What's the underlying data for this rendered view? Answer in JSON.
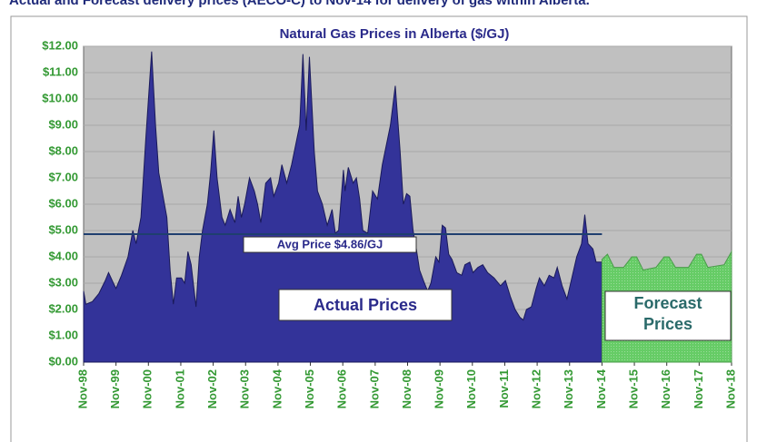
{
  "header": "Actual and Forecast delivery prices (AECO-C) to Nov-14 for delivery of gas within Alberta.",
  "chart_data": {
    "type": "area",
    "title": "Natural Gas Prices in Alberta ($/GJ)",
    "series": [
      {
        "name": "Actual Prices",
        "color": "#333399",
        "x": [
          1998.83,
          1998.9,
          1999.1,
          1999.3,
          1999.5,
          1999.6,
          1999.75,
          1999.83,
          2000.0,
          2000.2,
          2000.35,
          2000.45,
          2000.6,
          2000.75,
          2000.93,
          2001.05,
          2001.15,
          2001.4,
          2001.5,
          2001.6,
          2001.7,
          2001.85,
          2001.95,
          2002.05,
          2002.15,
          2002.3,
          2002.4,
          2002.5,
          2002.65,
          2002.75,
          2002.85,
          2002.95,
          2003.1,
          2003.2,
          2003.35,
          2003.5,
          2003.6,
          2003.7,
          2003.8,
          2003.95,
          2004.1,
          2004.2,
          2004.3,
          2004.45,
          2004.6,
          2004.7,
          2004.85,
          2004.95,
          2005.1,
          2005.25,
          2005.5,
          2005.6,
          2005.7,
          2005.8,
          2005.95,
          2006.05,
          2006.2,
          2006.35,
          2006.5,
          2006.6,
          2006.7,
          2006.85,
          2006.9,
          2007.0,
          2007.15,
          2007.25,
          2007.35,
          2007.45,
          2007.6,
          2007.75,
          2007.9,
          2008.05,
          2008.3,
          2008.45,
          2008.6,
          2008.7,
          2008.8,
          2008.9,
          2009.0,
          2009.1,
          2009.2,
          2009.35,
          2009.45,
          2009.55,
          2009.7,
          2009.8,
          2009.9,
          2010.0,
          2010.1,
          2010.2,
          2010.35,
          2010.5,
          2010.6,
          2010.75,
          2010.85,
          2011.0,
          2011.15,
          2011.3,
          2011.5,
          2011.7,
          2011.85,
          2012.0,
          2012.15,
          2012.3,
          2012.4,
          2012.5,
          2012.65,
          2012.8,
          2012.9,
          2013.05,
          2013.2,
          2013.35,
          2013.45,
          2013.6,
          2013.75,
          2013.9,
          2014.05,
          2014.2,
          2014.3,
          2014.4,
          2014.55,
          2014.65,
          2014.83
        ],
        "values": [
          2.7,
          2.2,
          2.3,
          2.6,
          3.1,
          3.4,
          3.0,
          2.8,
          3.3,
          4.0,
          5.0,
          4.5,
          5.5,
          8.5,
          11.8,
          9.0,
          7.2,
          5.5,
          3.5,
          2.2,
          3.2,
          3.2,
          3.0,
          4.2,
          3.7,
          2.1,
          4.0,
          5.0,
          6.0,
          7.2,
          8.8,
          7.0,
          5.5,
          5.2,
          5.8,
          5.3,
          6.3,
          5.5,
          6.0,
          7.0,
          6.5,
          6.0,
          5.3,
          6.8,
          7.0,
          6.3,
          6.8,
          7.5,
          6.8,
          7.5,
          9.0,
          11.7,
          8.8,
          11.6,
          8.0,
          6.5,
          6.0,
          5.2,
          5.8,
          4.9,
          5.0,
          7.3,
          6.5,
          7.4,
          6.8,
          7.0,
          6.2,
          5.0,
          4.9,
          6.5,
          6.2,
          7.5,
          9.0,
          10.5,
          8.0,
          6.0,
          6.4,
          6.3,
          5.0,
          4.3,
          3.5,
          3.0,
          2.7,
          3.0,
          4.0,
          3.8,
          5.2,
          5.1,
          4.1,
          3.9,
          3.4,
          3.3,
          3.7,
          3.8,
          3.4,
          3.6,
          3.7,
          3.4,
          3.2,
          2.9,
          3.1,
          2.5,
          2.0,
          1.7,
          1.6,
          2.0,
          2.1,
          2.8,
          3.2,
          2.9,
          3.3,
          3.2,
          3.6,
          2.9,
          2.4,
          3.2,
          4.0,
          4.5,
          5.6,
          4.5,
          4.3,
          3.8,
          3.8
        ]
      },
      {
        "name": "Forecast Prices",
        "color": "#66cc66",
        "x": [
          2014.83,
          2015.0,
          2015.2,
          2015.5,
          2015.75,
          2015.9,
          2016.1,
          2016.5,
          2016.75,
          2016.9,
          2017.1,
          2017.5,
          2017.75,
          2017.9,
          2018.1,
          2018.6,
          2018.83
        ],
        "values": [
          3.9,
          4.1,
          3.6,
          3.6,
          4.0,
          4.0,
          3.5,
          3.6,
          4.0,
          4.0,
          3.6,
          3.6,
          4.1,
          4.1,
          3.6,
          3.7,
          4.2
        ]
      }
    ],
    "annotations": {
      "actual": "Actual Prices",
      "forecast": [
        "Forecast",
        "Prices"
      ]
    },
    "average": {
      "value": 4.86,
      "label": "Avg Price $4.86/GJ",
      "x": [
        1998.83,
        2014.83
      ],
      "color": "#1f3f6f"
    },
    "xlim": [
      1998.83,
      2018.83
    ],
    "xticks": [
      {
        "value": 1998.83,
        "label": "Nov-98"
      },
      {
        "value": 1999.83,
        "label": "Nov-99"
      },
      {
        "value": 2000.83,
        "label": "Nov-00"
      },
      {
        "value": 2001.83,
        "label": "Nov-01"
      },
      {
        "value": 2002.83,
        "label": "Nov-02"
      },
      {
        "value": 2003.83,
        "label": "Nov-03"
      },
      {
        "value": 2004.83,
        "label": "Nov-04"
      },
      {
        "value": 2005.83,
        "label": "Nov-05"
      },
      {
        "value": 2006.83,
        "label": "Nov-06"
      },
      {
        "value": 2007.83,
        "label": "Nov-07"
      },
      {
        "value": 2008.83,
        "label": "Nov-08"
      },
      {
        "value": 2009.83,
        "label": "Nov-09"
      },
      {
        "value": 2010.83,
        "label": "Nov-10"
      },
      {
        "value": 2011.83,
        "label": "Nov-11"
      },
      {
        "value": 2012.83,
        "label": "Nov-12"
      },
      {
        "value": 2013.83,
        "label": "Nov-13"
      },
      {
        "value": 2014.83,
        "label": "Nov-14"
      },
      {
        "value": 2015.83,
        "label": "Nov-15"
      },
      {
        "value": 2016.83,
        "label": "Nov-16"
      },
      {
        "value": 2017.83,
        "label": "Nov-17"
      },
      {
        "value": 2018.83,
        "label": "Nov-18"
      }
    ],
    "ylim": [
      0,
      12
    ],
    "yticks": [
      {
        "value": 0,
        "label": "$0.00"
      },
      {
        "value": 1,
        "label": "$1.00"
      },
      {
        "value": 2,
        "label": "$2.00"
      },
      {
        "value": 3,
        "label": "$3.00"
      },
      {
        "value": 4,
        "label": "$4.00"
      },
      {
        "value": 5,
        "label": "$5.00"
      },
      {
        "value": 6,
        "label": "$6.00"
      },
      {
        "value": 7,
        "label": "$7.00"
      },
      {
        "value": 8,
        "label": "$8.00"
      },
      {
        "value": 9,
        "label": "$9.00"
      },
      {
        "value": 10,
        "label": "$10.00"
      },
      {
        "value": 11,
        "label": "$11.00"
      },
      {
        "value": 12,
        "label": "$12.00"
      }
    ],
    "grid": true
  }
}
